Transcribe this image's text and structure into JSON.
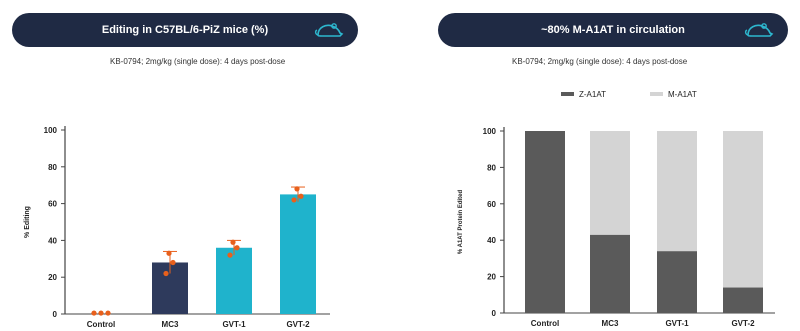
{
  "header_left": {
    "title": "Editing in C57BL/6-PiZ mice (%)",
    "icon": "mouse-icon",
    "subtitle": "KB-0794; 2mg/kg (single dose): 4 days post-dose"
  },
  "header_right": {
    "title": "~80% M-A1AT in circulation",
    "icon": "mouse-icon",
    "subtitle": "KB-0794; 2mg/kg (single dose): 4 days post-dose"
  },
  "colors": {
    "header_bg": "#1f2a44",
    "header_icon": "#2db7cf",
    "mc3": "#2e3a5c",
    "gvt": "#1fb3cc",
    "points": "#e8601c",
    "z_a1at": "#5a5a5a",
    "m_a1at": "#d4d4d4"
  },
  "chart_data": [
    {
      "type": "bar",
      "title": "Editing in C57BL/6-PiZ mice (%)",
      "xlabel": "",
      "ylabel": "% Editing",
      "ylim": [
        0,
        100
      ],
      "yticks": [
        0,
        20,
        40,
        60,
        80,
        100
      ],
      "categories": [
        "Control",
        "MC3",
        "GVT-1",
        "GVT-2"
      ],
      "values": [
        0,
        28,
        36,
        65
      ],
      "error": [
        0,
        6,
        4,
        4
      ],
      "points": [
        [
          0.5,
          0.5,
          0.5
        ],
        [
          22,
          28,
          33
        ],
        [
          32,
          36,
          39
        ],
        [
          62,
          64,
          68
        ]
      ],
      "grid": false
    },
    {
      "type": "bar",
      "stacked": true,
      "title": "~80% M-A1AT in circulation",
      "xlabel": "",
      "ylabel": "% A1AT Protein Edited",
      "ylim": [
        0,
        100
      ],
      "yticks": [
        0,
        20,
        40,
        60,
        80,
        100
      ],
      "categories": [
        "Control",
        "MC3",
        "GVT-1",
        "GVT-2"
      ],
      "legend_position": "top",
      "grid": false,
      "series": [
        {
          "name": "Z-A1AT",
          "values": [
            100,
            43,
            34,
            14
          ]
        },
        {
          "name": "M-A1AT",
          "values": [
            0,
            57,
            66,
            86
          ]
        }
      ]
    }
  ]
}
